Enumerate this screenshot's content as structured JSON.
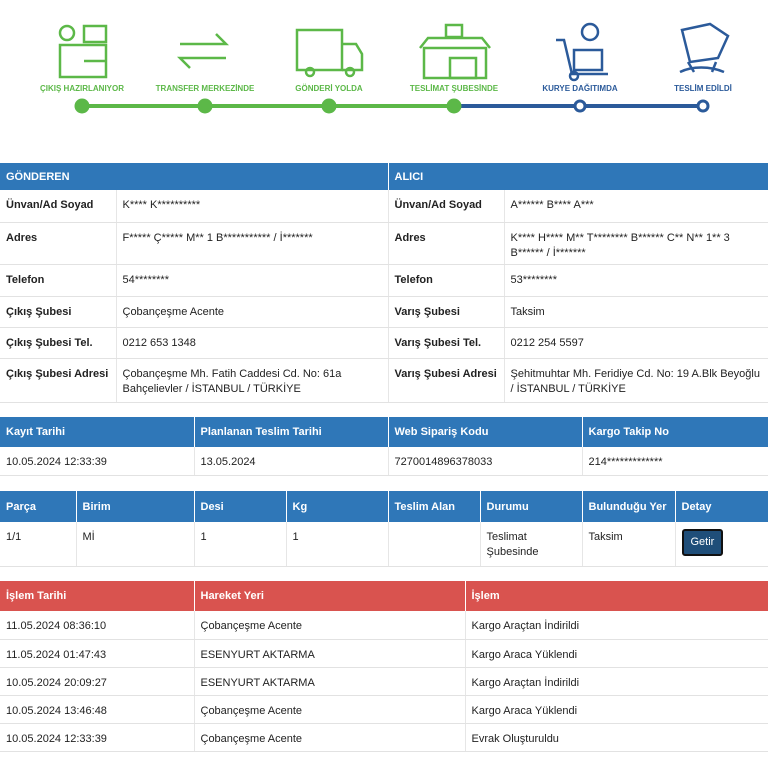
{
  "steps": [
    "ÇIKIŞ HAZIRLANIYOR",
    "TRANSFER MERKEZİNDE",
    "GÖNDERİ YOLDA",
    "TESLİMAT ŞUBESİNDE",
    "KURYE DAĞITIMDA",
    "TESLİM EDİLDİ"
  ],
  "parties": {
    "sender": {
      "title": "GÖNDEREN",
      "rows": [
        [
          "Ünvan/Ad Soyad",
          "K**** K**********"
        ],
        [
          "Adres",
          "F***** Ç***** M** 1 B*********** / İ*******"
        ],
        [
          "Telefon",
          "54********"
        ],
        [
          "Çıkış Şubesi",
          "Çobançeşme Acente"
        ],
        [
          "Çıkış Şubesi Tel.",
          "0212 653 1348"
        ],
        [
          "Çıkış Şubesi Adresi",
          "Çobançeşme Mh. Fatih Caddesi Cd. No: 61a Bahçelievler / İSTANBUL / TÜRKİYE"
        ]
      ]
    },
    "receiver": {
      "title": "ALICI",
      "rows": [
        [
          "Ünvan/Ad Soyad",
          "A****** B**** A***"
        ],
        [
          "Adres",
          "K**** H**** M** T******** B****** C** N** 1** 3 B****** / İ*******"
        ],
        [
          "Telefon",
          "53********"
        ],
        [
          "Varış Şubesi",
          "Taksim"
        ],
        [
          "Varış Şubesi Tel.",
          "0212 254 5597"
        ],
        [
          "Varış Şubesi Adresi",
          "Şehitmuhtar Mh. Feridiye Cd. No: 19 A.Blk Beyoğlu / İSTANBUL / TÜRKİYE"
        ]
      ]
    }
  },
  "info": {
    "headers": [
      "Kayıt Tarihi",
      "Planlanan Teslim Tarihi",
      "Web Sipariş Kodu",
      "Kargo Takip No"
    ],
    "row": [
      "10.05.2024 12:33:39",
      "13.05.2024",
      "7270014896378033",
      "214*************"
    ]
  },
  "parts": {
    "headers": [
      "Parça",
      "Birim",
      "Desi",
      "Kg",
      "Teslim Alan",
      "Durumu",
      "Bulunduğu Yer",
      "Detay"
    ],
    "row": [
      "1/1",
      "Mİ",
      "1",
      "1",
      null,
      "Teslimat Şubesinde",
      "Taksim",
      "Getir"
    ]
  },
  "history": {
    "headers": [
      "İşlem Tarihi",
      "Hareket Yeri",
      "İşlem"
    ],
    "rows": [
      [
        "11.05.2024 08:36:10",
        "Çobançeşme Acente",
        "Kargo Araçtan İndirildi"
      ],
      [
        "11.05.2024 01:47:43",
        "ESENYURT AKTARMA",
        "Kargo Araca Yüklendi"
      ],
      [
        "10.05.2024 20:09:27",
        "ESENYURT AKTARMA",
        "Kargo Araçtan İndirildi"
      ],
      [
        "10.05.2024 13:46:48",
        "Çobançeşme Acente",
        "Kargo Araca Yüklendi"
      ],
      [
        "10.05.2024 12:33:39",
        "Çobançeşme Acente",
        "Evrak Oluşturuldu"
      ]
    ]
  }
}
